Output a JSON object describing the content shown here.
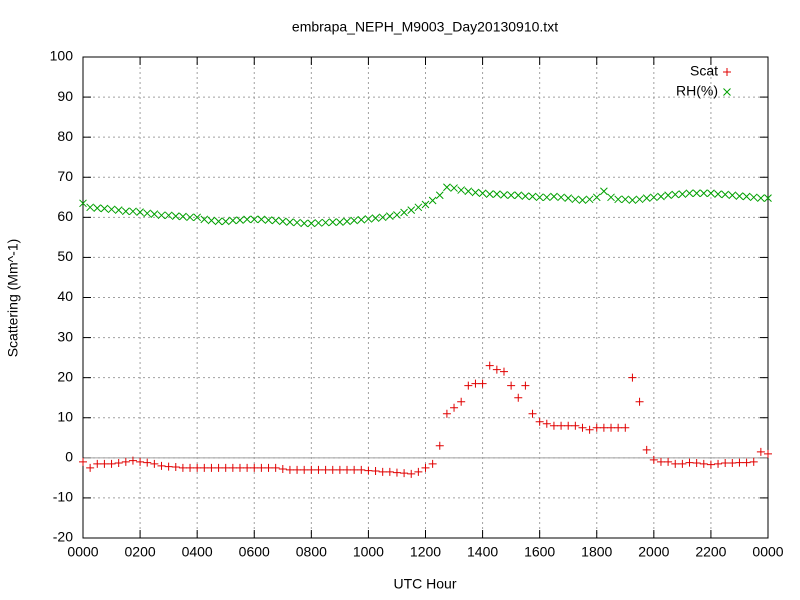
{
  "chart_data": {
    "type": "scatter",
    "title": "embrapa_NEPH_M9003_Day20130910.txt",
    "x_label": "UTC Hour",
    "y_label": "Scattering (Mm^-1)",
    "xlim": [
      0,
      24
    ],
    "xticks": [
      {
        "value": 0,
        "label": "0000"
      },
      {
        "value": 2,
        "label": "0200"
      },
      {
        "value": 4,
        "label": "0400"
      },
      {
        "value": 6,
        "label": "0600"
      },
      {
        "value": 8,
        "label": "0800"
      },
      {
        "value": 10,
        "label": "1000"
      },
      {
        "value": 12,
        "label": "1200"
      },
      {
        "value": 14,
        "label": "1400"
      },
      {
        "value": 16,
        "label": "1600"
      },
      {
        "value": 18,
        "label": "1800"
      },
      {
        "value": 20,
        "label": "2000"
      },
      {
        "value": 22,
        "label": "2200"
      },
      {
        "value": 24,
        "label": "0000"
      }
    ],
    "ylim": [
      -20,
      100
    ],
    "yticks": [
      -20,
      -10,
      0,
      10,
      20,
      30,
      40,
      50,
      60,
      70,
      80,
      90,
      100
    ],
    "grid": true,
    "legend": "top-right",
    "x": [
      0,
      0.25,
      0.5,
      0.75,
      1,
      1.25,
      1.5,
      1.75,
      2,
      2.25,
      2.5,
      2.75,
      3,
      3.25,
      3.5,
      3.75,
      4,
      4.25,
      4.5,
      4.75,
      5,
      5.25,
      5.5,
      5.75,
      6,
      6.25,
      6.5,
      6.75,
      7,
      7.25,
      7.5,
      7.75,
      8,
      8.25,
      8.5,
      8.75,
      9,
      9.25,
      9.5,
      9.75,
      10,
      10.25,
      10.5,
      10.75,
      11,
      11.25,
      11.5,
      11.75,
      12,
      12.25,
      12.5,
      12.75,
      13,
      13.25,
      13.5,
      13.75,
      14,
      14.25,
      14.5,
      14.75,
      15,
      15.25,
      15.5,
      15.75,
      16,
      16.25,
      16.5,
      16.75,
      17,
      17.25,
      17.5,
      17.75,
      18,
      18.25,
      18.5,
      18.75,
      19,
      19.25,
      19.5,
      19.75,
      20,
      20.25,
      20.5,
      20.75,
      21,
      21.25,
      21.5,
      21.75,
      22,
      22.25,
      22.5,
      22.75,
      23,
      23.25,
      23.5,
      23.75,
      24
    ],
    "series": [
      {
        "name": "Scat",
        "color": "#e00000",
        "marker": "plus",
        "values": [
          -1,
          -2.5,
          -1.5,
          -1.5,
          -1.5,
          -1.3,
          -1,
          -0.7,
          -1,
          -1.2,
          -1.5,
          -2,
          -2.2,
          -2.3,
          -2.5,
          -2.5,
          -2.5,
          -2.5,
          -2.5,
          -2.5,
          -2.5,
          -2.5,
          -2.5,
          -2.5,
          -2.5,
          -2.5,
          -2.5,
          -2.5,
          -2.8,
          -3,
          -3,
          -3,
          -3,
          -3,
          -3,
          -3,
          -3,
          -3,
          -3,
          -3,
          -3.2,
          -3.3,
          -3.5,
          -3.5,
          -3.7,
          -3.8,
          -4,
          -3.5,
          -2.5,
          -1.5,
          3,
          11,
          12.5,
          14,
          18,
          18.5,
          18.5,
          23,
          22,
          21.5,
          18,
          15,
          18,
          11,
          9,
          8.5,
          8,
          8,
          8,
          8,
          7.5,
          7,
          7.5,
          7.5,
          7.5,
          7.5,
          7.5,
          20,
          14,
          2,
          -0.5,
          -1,
          -1,
          -1.5,
          -1.5,
          -1.2,
          -1.3,
          -1.5,
          -1.7,
          -1.5,
          -1.3,
          -1.3,
          -1.2,
          -1.2,
          -1,
          1.5,
          1
        ]
      },
      {
        "name": "RH(%)",
        "color": "#00a000",
        "marker": "cross",
        "values": [
          63.5,
          62.5,
          62.3,
          62.2,
          62,
          61.8,
          61.5,
          61.5,
          61.3,
          61,
          60.8,
          60.5,
          60.5,
          60.3,
          60.2,
          60,
          60,
          59.5,
          59.2,
          59,
          59,
          59.2,
          59.3,
          59.5,
          59.5,
          59.5,
          59.3,
          59.2,
          59,
          58.8,
          58.7,
          58.5,
          58.5,
          58.6,
          58.7,
          58.8,
          58.8,
          59,
          59.2,
          59.4,
          59.6,
          59.8,
          60,
          60.3,
          60.6,
          61.2,
          61.8,
          62.5,
          63.2,
          64.2,
          65.5,
          67.5,
          67.3,
          66.8,
          66.5,
          66.2,
          66,
          65.8,
          65.8,
          65.6,
          65.5,
          65.5,
          65.3,
          65.2,
          65,
          65,
          65.2,
          65,
          64.8,
          64.5,
          64.3,
          64.5,
          65,
          66.5,
          65,
          64.5,
          64.5,
          64.3,
          64.5,
          64.8,
          65,
          65.2,
          65.5,
          65.7,
          65.8,
          66,
          66,
          66,
          66,
          65.8,
          65.7,
          65.5,
          65.3,
          65.2,
          65,
          64.8,
          64.8
        ]
      }
    ]
  }
}
